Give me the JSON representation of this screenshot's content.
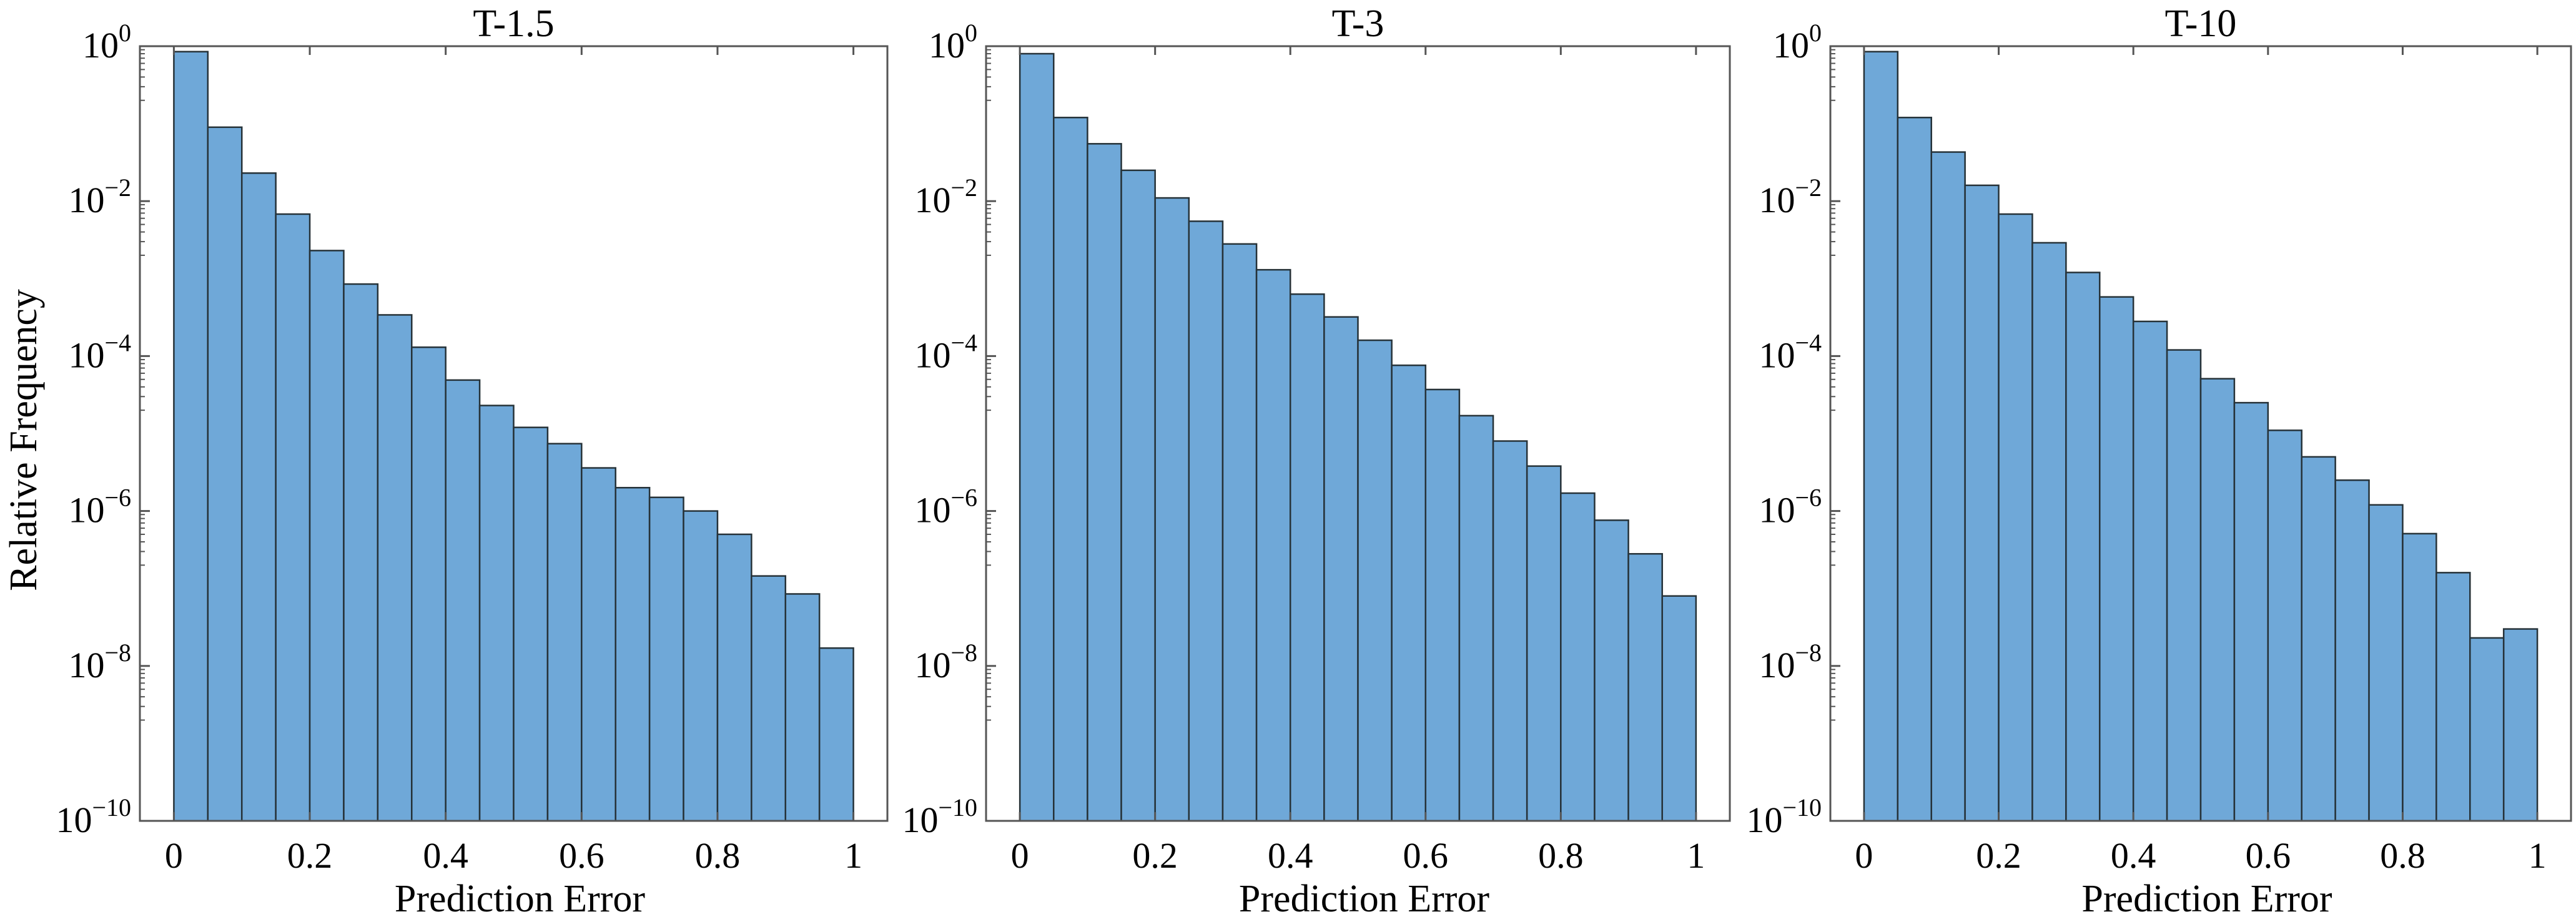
{
  "ylabel": "Relative Frequency",
  "colors": {
    "bar_fill": "#6fa8d8",
    "bar_edge": "#263238",
    "axis": "#555555"
  },
  "chart_data": [
    {
      "type": "bar",
      "title": "T-1.5",
      "xlabel": "Prediction Error",
      "ylabel": "Relative Frequency",
      "yscale": "log",
      "xlim": [
        -0.05,
        1.05
      ],
      "ylim": [
        1e-10,
        1
      ],
      "xticks": [
        "0",
        "0.2",
        "0.4",
        "0.6",
        "0.8",
        "1"
      ],
      "yticks": [
        "10^0",
        "10^-2",
        "10^-4",
        "10^-6",
        "10^-8",
        "10^-10"
      ],
      "bin_width": 0.05,
      "bin_starts": [
        0,
        0.05,
        0.1,
        0.15,
        0.2,
        0.25,
        0.3,
        0.35,
        0.4,
        0.45,
        0.5,
        0.55,
        0.6,
        0.65,
        0.7,
        0.75,
        0.8,
        0.85,
        0.9,
        0.95
      ],
      "values": [
        0.85,
        0.09,
        0.023,
        0.0068,
        0.0023,
        0.00085,
        0.00034,
        0.00013,
        4.9e-05,
        2.3e-05,
        1.2e-05,
        7.4e-06,
        3.6e-06,
        2e-06,
        1.5e-06,
        1e-06,
        5e-07,
        1.45e-07,
        8.5e-08,
        1.7e-08
      ]
    },
    {
      "type": "bar",
      "title": "T-3",
      "xlabel": "Prediction Error",
      "yscale": "log",
      "xlim": [
        -0.05,
        1.05
      ],
      "ylim": [
        1e-10,
        1
      ],
      "xticks": [
        "0",
        "0.2",
        "0.4",
        "0.6",
        "0.8",
        "1"
      ],
      "yticks": [
        "10^0",
        "10^-2",
        "10^-4",
        "10^-6",
        "10^-8",
        "10^-10"
      ],
      "bin_width": 0.05,
      "bin_starts": [
        0,
        0.05,
        0.1,
        0.15,
        0.2,
        0.25,
        0.3,
        0.35,
        0.4,
        0.45,
        0.5,
        0.55,
        0.6,
        0.65,
        0.7,
        0.75,
        0.8,
        0.85,
        0.9,
        0.95
      ],
      "values": [
        0.8,
        0.12,
        0.055,
        0.025,
        0.011,
        0.0055,
        0.0028,
        0.0013,
        0.00063,
        0.00032,
        0.00016,
        7.6e-05,
        3.7e-05,
        1.7e-05,
        8e-06,
        3.8e-06,
        1.7e-06,
        7.6e-07,
        2.8e-07,
        8e-08
      ]
    },
    {
      "type": "bar",
      "title": "T-10",
      "xlabel": "Prediction Error",
      "yscale": "log",
      "xlim": [
        -0.05,
        1.05
      ],
      "ylim": [
        1e-10,
        1
      ],
      "xticks": [
        "0",
        "0.2",
        "0.4",
        "0.6",
        "0.8",
        "1"
      ],
      "yticks": [
        "10^0",
        "10^-2",
        "10^-4",
        "10^-6",
        "10^-8",
        "10^-10"
      ],
      "bin_width": 0.05,
      "bin_starts": [
        0,
        0.05,
        0.1,
        0.15,
        0.2,
        0.25,
        0.3,
        0.35,
        0.4,
        0.45,
        0.5,
        0.55,
        0.6,
        0.65,
        0.7,
        0.75,
        0.8,
        0.85,
        0.9,
        0.95
      ],
      "values": [
        0.85,
        0.12,
        0.043,
        0.016,
        0.0068,
        0.0029,
        0.0012,
        0.00058,
        0.00028,
        0.00012,
        5.1e-05,
        2.5e-05,
        1.1e-05,
        5e-06,
        2.5e-06,
        1.2e-06,
        5.1e-07,
        1.6e-07,
        2.3e-08,
        3e-08
      ]
    }
  ]
}
